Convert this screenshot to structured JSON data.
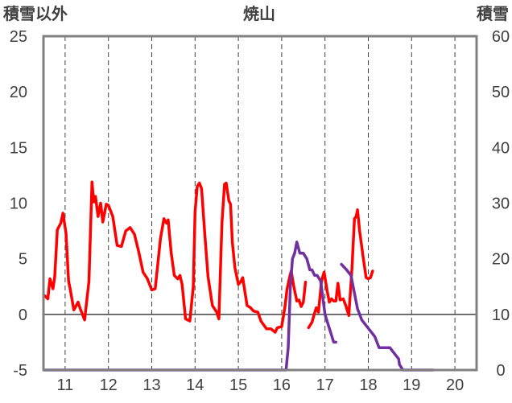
{
  "chart_data": {
    "type": "line",
    "title": "焼山",
    "left_axis_label": "積雪以外",
    "right_axis_label": "積雪",
    "x_ticks": [
      "11",
      "12",
      "13",
      "14",
      "15",
      "16",
      "17",
      "18",
      "19",
      "20"
    ],
    "left_ylim": [
      -5,
      25
    ],
    "left_yticks": [
      25,
      20,
      15,
      10,
      5,
      0,
      -5
    ],
    "right_ylim": [
      0,
      60
    ],
    "right_yticks": [
      60,
      50,
      40,
      30,
      20,
      10,
      0
    ],
    "xlim": [
      10.5,
      20.5
    ],
    "grid": {
      "vertical_dashed": true,
      "horizontal_zero": true
    },
    "series": [
      {
        "axis": "left",
        "color": "#ff0000",
        "points": [
          [
            10.52,
            1.7
          ],
          [
            10.6,
            1.4
          ],
          [
            10.65,
            3.2
          ],
          [
            10.72,
            2.3
          ],
          [
            10.76,
            3.4
          ],
          [
            10.82,
            7.6
          ],
          [
            10.9,
            8.2
          ],
          [
            10.95,
            9.1
          ],
          [
            11.02,
            7.3
          ],
          [
            11.08,
            3.0
          ],
          [
            11.12,
            2.2
          ],
          [
            11.2,
            0.4
          ],
          [
            11.3,
            1.1
          ],
          [
            11.35,
            0.5
          ],
          [
            11.45,
            -0.5
          ],
          [
            11.55,
            3.0
          ],
          [
            11.62,
            11.9
          ],
          [
            11.66,
            10.1
          ],
          [
            11.7,
            10.6
          ],
          [
            11.76,
            8.8
          ],
          [
            11.82,
            10.0
          ],
          [
            11.87,
            8.3
          ],
          [
            11.95,
            9.9
          ],
          [
            12.0,
            9.8
          ],
          [
            12.1,
            8.8
          ],
          [
            12.2,
            6.2
          ],
          [
            12.3,
            6.1
          ],
          [
            12.4,
            7.5
          ],
          [
            12.5,
            7.8
          ],
          [
            12.6,
            7.2
          ],
          [
            12.7,
            5.6
          ],
          [
            12.8,
            3.8
          ],
          [
            12.9,
            3.2
          ],
          [
            13.0,
            2.2
          ],
          [
            13.08,
            2.3
          ],
          [
            13.2,
            6.8
          ],
          [
            13.28,
            8.6
          ],
          [
            13.34,
            8.2
          ],
          [
            13.38,
            8.5
          ],
          [
            13.45,
            5.5
          ],
          [
            13.52,
            3.5
          ],
          [
            13.6,
            3.2
          ],
          [
            13.65,
            3.5
          ],
          [
            13.7,
            2.7
          ],
          [
            13.78,
            -0.4
          ],
          [
            13.88,
            -0.6
          ],
          [
            13.96,
            2.5
          ],
          [
            14.0,
            9.2
          ],
          [
            14.05,
            11.5
          ],
          [
            14.1,
            11.8
          ],
          [
            14.15,
            11.3
          ],
          [
            14.22,
            7.5
          ],
          [
            14.3,
            3.4
          ],
          [
            14.4,
            0.8
          ],
          [
            14.5,
            0.2
          ],
          [
            14.55,
            -0.4
          ],
          [
            14.62,
            8.2
          ],
          [
            14.68,
            11.7
          ],
          [
            14.72,
            11.8
          ],
          [
            14.78,
            10.2
          ],
          [
            14.82,
            9.9
          ],
          [
            14.86,
            6.5
          ],
          [
            14.92,
            4.2
          ],
          [
            15.0,
            2.7
          ],
          [
            15.05,
            2.9
          ],
          [
            15.1,
            3.3
          ],
          [
            15.2,
            0.8
          ],
          [
            15.28,
            0.6
          ],
          [
            15.35,
            0.3
          ],
          [
            15.45,
            0.2
          ],
          [
            15.52,
            -0.6
          ],
          [
            15.65,
            -1.3
          ],
          [
            15.75,
            -1.3
          ],
          [
            15.85,
            -1.6
          ],
          [
            15.9,
            -1.2
          ],
          [
            16.0,
            -1.1
          ],
          [
            16.08,
            0.8
          ],
          [
            16.12,
            2.2
          ],
          [
            16.18,
            3.3
          ],
          [
            16.22,
            3.9
          ],
          [
            16.28,
            2.5
          ],
          [
            16.35,
            1.2
          ],
          [
            16.4,
            1.3
          ],
          [
            16.45,
            0.7
          ],
          [
            16.5,
            1.1
          ],
          [
            16.55,
            2.9
          ]
        ]
      },
      {
        "axis": "left",
        "color": "#ff0000",
        "points": [
          [
            16.62,
            -1.2
          ],
          [
            16.7,
            -0.7
          ],
          [
            16.75,
            0.0
          ],
          [
            16.8,
            0.6
          ],
          [
            16.85,
            0.2
          ],
          [
            16.92,
            3.0
          ],
          [
            16.98,
            3.8
          ],
          [
            17.05,
            2.1
          ],
          [
            17.1,
            1.1
          ],
          [
            17.15,
            1.4
          ],
          [
            17.2,
            1.2
          ],
          [
            17.25,
            1.2
          ],
          [
            17.3,
            2.8
          ],
          [
            17.35,
            1.3
          ],
          [
            17.42,
            1.4
          ],
          [
            17.48,
            0.8
          ],
          [
            17.55,
            -0.1
          ],
          [
            17.62,
            4.0
          ],
          [
            17.68,
            8.6
          ],
          [
            17.72,
            8.8
          ],
          [
            17.75,
            9.4
          ],
          [
            17.8,
            7.5
          ],
          [
            17.88,
            5.2
          ],
          [
            17.95,
            3.3
          ],
          [
            18.0,
            3.2
          ],
          [
            18.05,
            3.3
          ],
          [
            18.1,
            3.9
          ]
        ]
      },
      {
        "axis": "right",
        "color": "#7030a0",
        "points": [
          [
            10.52,
            0
          ],
          [
            16.1,
            0
          ],
          [
            16.15,
            4
          ],
          [
            16.2,
            15
          ],
          [
            16.25,
            20
          ],
          [
            16.3,
            21
          ],
          [
            16.35,
            23
          ],
          [
            16.42,
            21
          ],
          [
            16.5,
            21
          ],
          [
            16.58,
            20
          ],
          [
            16.65,
            18
          ],
          [
            16.7,
            18
          ],
          [
            16.76,
            17
          ],
          [
            16.82,
            17
          ],
          [
            16.9,
            16
          ],
          [
            17.0,
            10
          ],
          [
            17.08,
            8
          ],
          [
            17.12,
            7
          ],
          [
            17.2,
            5
          ],
          [
            17.25,
            5
          ]
        ]
      },
      {
        "axis": "right",
        "color": "#7030a0",
        "points": [
          [
            17.38,
            19
          ],
          [
            17.5,
            18
          ],
          [
            17.6,
            17
          ],
          [
            17.65,
            15
          ],
          [
            17.75,
            11
          ],
          [
            17.85,
            9
          ],
          [
            17.95,
            8
          ],
          [
            18.05,
            7
          ],
          [
            18.15,
            6
          ],
          [
            18.25,
            4
          ],
          [
            18.35,
            4
          ],
          [
            18.5,
            4
          ],
          [
            18.6,
            3
          ],
          [
            18.7,
            2
          ],
          [
            18.72,
            1
          ],
          [
            18.8,
            0
          ],
          [
            19.5,
            0
          ]
        ]
      }
    ]
  }
}
